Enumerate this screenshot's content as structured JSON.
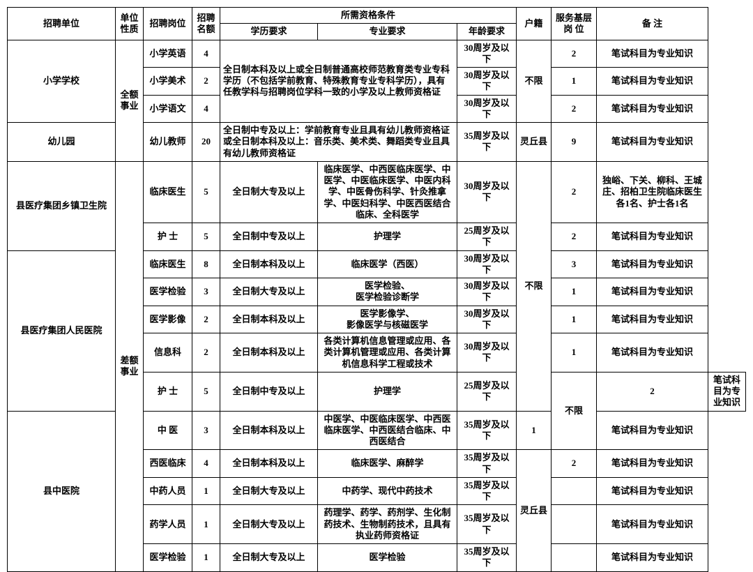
{
  "header": {
    "unit": "招聘单位",
    "nature": "单位性质",
    "post": "招聘岗位",
    "quota": "招聘名额",
    "req": "所需资格条件",
    "edu": "学历要求",
    "major": "专业要求",
    "age": "年龄要求",
    "reg": "户籍",
    "base": "服务基层岗 位",
    "note": "备 注"
  },
  "col_w": {
    "unit": 155,
    "nature": 40,
    "post": 70,
    "quota": 40,
    "edu": 140,
    "major": 200,
    "age": 85,
    "reg": 50,
    "base": 65,
    "note": 160
  },
  "nature": {
    "full": "全额事业",
    "diff": "差额事业"
  },
  "reg": {
    "none": "不限",
    "lq": "灵丘县"
  },
  "notes": {
    "zy": "笔试科目为专业知识",
    "dx": "独峪、下关、柳科、王城庄、招柏卫生院临床医生各1名、护士各1名"
  },
  "g1": {
    "unit": "小学学校",
    "edu": "全日制本科及以上或全日制普通高校师范教育类专业专科学历（不包括学前教育、特殊教育专业专科学历），具有任教学科与招聘岗位学科一致的小学及以上教师资格证",
    "r": [
      {
        "post": "小学英语",
        "q": "4",
        "age": "30周岁及以下",
        "base": "2"
      },
      {
        "post": "小学美术",
        "q": "2",
        "age": "30周岁及以下",
        "base": "1"
      },
      {
        "post": "小学语文",
        "q": "4",
        "age": "30周岁及以下",
        "base": "2"
      }
    ]
  },
  "g2": {
    "unit": "幼儿园",
    "post": "幼儿教师",
    "q": "20",
    "edu": "全日制中专及以上：学前教育专业且具有幼儿教师资格证\n或全日制本科及以上：音乐类、美术类、舞蹈类专业且具有幼儿教师资格证",
    "age": "35周岁及以下",
    "base": "9"
  },
  "g3": {
    "unit": "县医疗集团乡镇卫生院",
    "r": [
      {
        "post": "临床医生",
        "q": "5",
        "edu": "全日制大专及以上",
        "major": "临床医学、中西医临床医学、中医学、中医临床医学、中医内科学、中医骨伤科学、针灸推拿学、中医妇科学、中医西医结合临床、全科医学",
        "age": "30周岁及以下",
        "base": "2"
      },
      {
        "post": "护 士",
        "q": "5",
        "edu": "全日制中专及以上",
        "major": "护理学",
        "age": "25周岁及以下",
        "base": "2"
      }
    ]
  },
  "g4": {
    "unit": "县医疗集团人民医院",
    "r": [
      {
        "post": "临床医生",
        "q": "8",
        "edu": "全日制本科及以上",
        "major": "临床医学（西医）",
        "age": "30周岁及以下",
        "base": "3"
      },
      {
        "post": "医学检验",
        "q": "3",
        "edu": "全日制大专及以上",
        "major": "医学检验、\n医学检验诊断学",
        "age": "30周岁及以下",
        "base": "1"
      },
      {
        "post": "医学影像",
        "q": "2",
        "edu": "全日制本科及以上",
        "major": "医学影像学、\n影像医学与核磁医学",
        "age": "30周岁及以下",
        "base": "1"
      },
      {
        "post": "信息科",
        "q": "2",
        "edu": "全日制本科及以上",
        "major": "各类计算机信息管理或应用、各类计算机管理或应用、各类计算机信息科学工程或技术",
        "age": "30周岁及以下",
        "base": "1"
      },
      {
        "post": "护 士",
        "q": "5",
        "edu": "全日制中专及以上",
        "major": "护理学",
        "age": "25周岁及以下",
        "base": "2"
      }
    ]
  },
  "g5": {
    "unit": "县中医院",
    "r": [
      {
        "post": "中 医",
        "q": "3",
        "edu": "全日制本科及以上",
        "major": "中医学、中医临床医学、中西医临床医学、中西医结合临床、中西医结合",
        "age": "35周岁及以下",
        "base": "1"
      },
      {
        "post": "西医临床",
        "q": "4",
        "edu": "全日制本科及以上",
        "major": "临床医学、麻醉学",
        "age": "35周岁及以下",
        "base": "2"
      },
      {
        "post": "中药人员",
        "q": "1",
        "edu": "全日制大专及以上",
        "major": "中药学、现代中药技术",
        "age": "35周岁及以下",
        "base": ""
      },
      {
        "post": "药学人员",
        "q": "1",
        "edu": "全日制大专及以上",
        "major": "药理学、药学、药剂学、生化制药技术、生物制药技术，且具有执业药师资格证",
        "age": "35周岁及以下",
        "base": ""
      },
      {
        "post": "医学检验",
        "q": "1",
        "edu": "全日制大专及以上",
        "major": "医学检验",
        "age": "35周岁及以下",
        "base": ""
      }
    ]
  }
}
